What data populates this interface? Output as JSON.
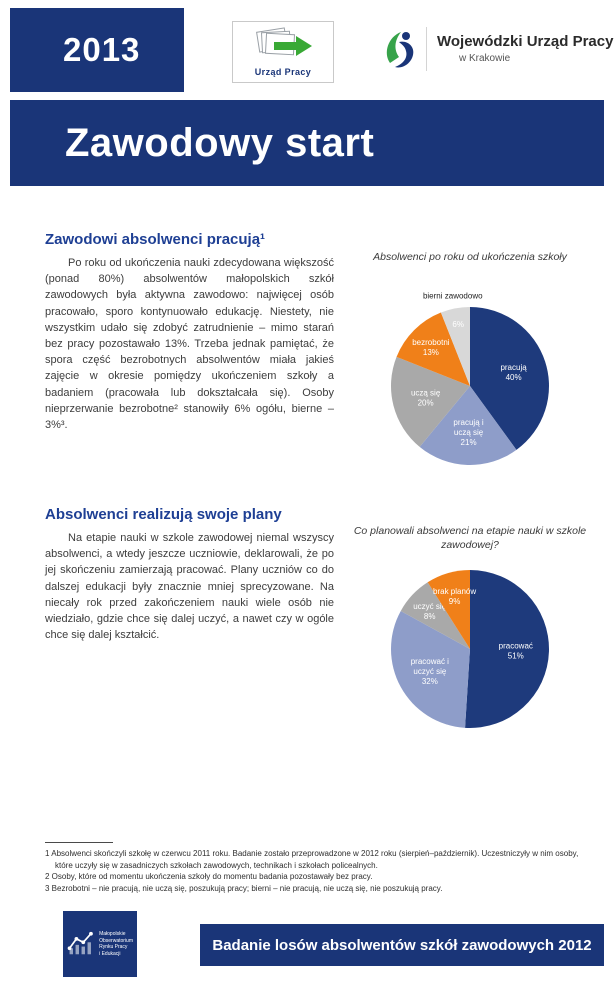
{
  "colors": {
    "navy": "#1a3578",
    "heading_blue": "#1e3f94",
    "orange": "#f08019",
    "periwinkle": "#8e9dc9",
    "gray": "#a9a9a9",
    "light_gray": "#d8d8d8",
    "green": "#39a935"
  },
  "header": {
    "year": "2013",
    "up_logo": {
      "label": "Urząd Pracy",
      "icon": "papers-with-green-arrow-icon"
    },
    "wup_logo": {
      "title": "Wojewódzki Urząd Pracy",
      "subtitle": "w Krakowie",
      "icon": "person-leaf-icon"
    },
    "banner_title": "Zawodowy start"
  },
  "sections": [
    {
      "heading": "Zawodowi absolwenci pracują¹",
      "body": "Po roku od ukończenia nauki zdecydowana większość (ponad 80%) absolwentów małopolskich szkół zawodowych była aktywna zawodowo: najwięcej osób pracowało, sporo kontynuowało edukację. Niestety, nie wszystkim udało się zdobyć zatrudnienie – mimo starań bez pracy pozostawało 13%. Trzeba jednak pamiętać, że spora część bezrobotnych absolwentów miała jakieś zajęcie w okresie pomiędzy ukończeniem szkoły a badaniem (pracowała lub dokształcała się). Osoby nieprzerwanie bezrobotne² stanowiły 6% ogółu, bierne – 3%³."
    },
    {
      "heading": "Absolwenci realizują swoje plany",
      "body": "Na etapie nauki w szkole zawodowej niemal wszyscy absolwenci, a wtedy jeszcze uczniowie, deklarowali, że po jej skończeniu zamierzają pracować. Plany uczniów co do dalszej edukacji były znacznie mniej sprecyzowane. Na niecały rok przed zakończeniem nauki wiele osób nie wiedziało, gdzie chce się dalej uczyć, a nawet czy w ogóle chce się dalej kształcić."
    }
  ],
  "chart_data": [
    {
      "type": "pie",
      "title": "Absolwenci po roku od ukończenia szkoły",
      "start_angle": 0,
      "legend_position": "none",
      "slices": [
        {
          "label": "pracują",
          "value": 40,
          "color": "#1e3a7c",
          "label_color": "#ffffff"
        },
        {
          "label": "pracują i uczą się",
          "value": 21,
          "color": "#8e9dc9",
          "label_color": "#ffffff"
        },
        {
          "label": "uczą się",
          "value": 20,
          "color": "#a9a9a9",
          "label_color": "#ffffff"
        },
        {
          "label": "bezrobotni",
          "value": 13,
          "color": "#f08019",
          "label_color": "#ffffff"
        },
        {
          "label": "bierni zawodowo",
          "value": 6,
          "color": "#d8d8d8",
          "label_color": "#ffffff",
          "label_outside": true
        }
      ]
    },
    {
      "type": "pie",
      "title": "Co planowali absolwenci na etapie nauki w szkole zawodowej?",
      "start_angle": 0,
      "legend_position": "none",
      "slices": [
        {
          "label": "pracować",
          "value": 51,
          "color": "#1e3a7c",
          "label_color": "#ffffff"
        },
        {
          "label": "pracować i uczyć się",
          "value": 32,
          "color": "#8e9dc9",
          "label_color": "#ffffff"
        },
        {
          "label": "uczyć się",
          "value": 8,
          "color": "#a9a9a9",
          "label_color": "#ffffff"
        },
        {
          "label": "brak planów",
          "value": 9,
          "color": "#f08019",
          "label_color": "#ffffff"
        }
      ]
    }
  ],
  "footnotes": [
    "1 Absolwenci skończyli szkołę w czerwcu 2011 roku. Badanie zostało przeprowadzone w 2012 roku (sierpień–październik). Uczestniczyły w nim osoby, które uczyły się w zasadniczych szkołach zawodowych, technikach i szkołach policealnych.",
    "2 Osoby, które od momentu ukończenia szkoły do momentu badania pozostawały bez pracy.",
    "3 Bezrobotni – nie pracują, nie uczą się, poszukują pracy; bierni – nie pracują, nie uczą się, nie poszukują pracy."
  ],
  "footer": {
    "logo_lines": [
      "Małopolskie",
      "Obserwatorium",
      "Rynku Pracy",
      "i Edukacji"
    ],
    "bar_text": "Badanie losów absolwentów szkół zawodowych 2012"
  }
}
